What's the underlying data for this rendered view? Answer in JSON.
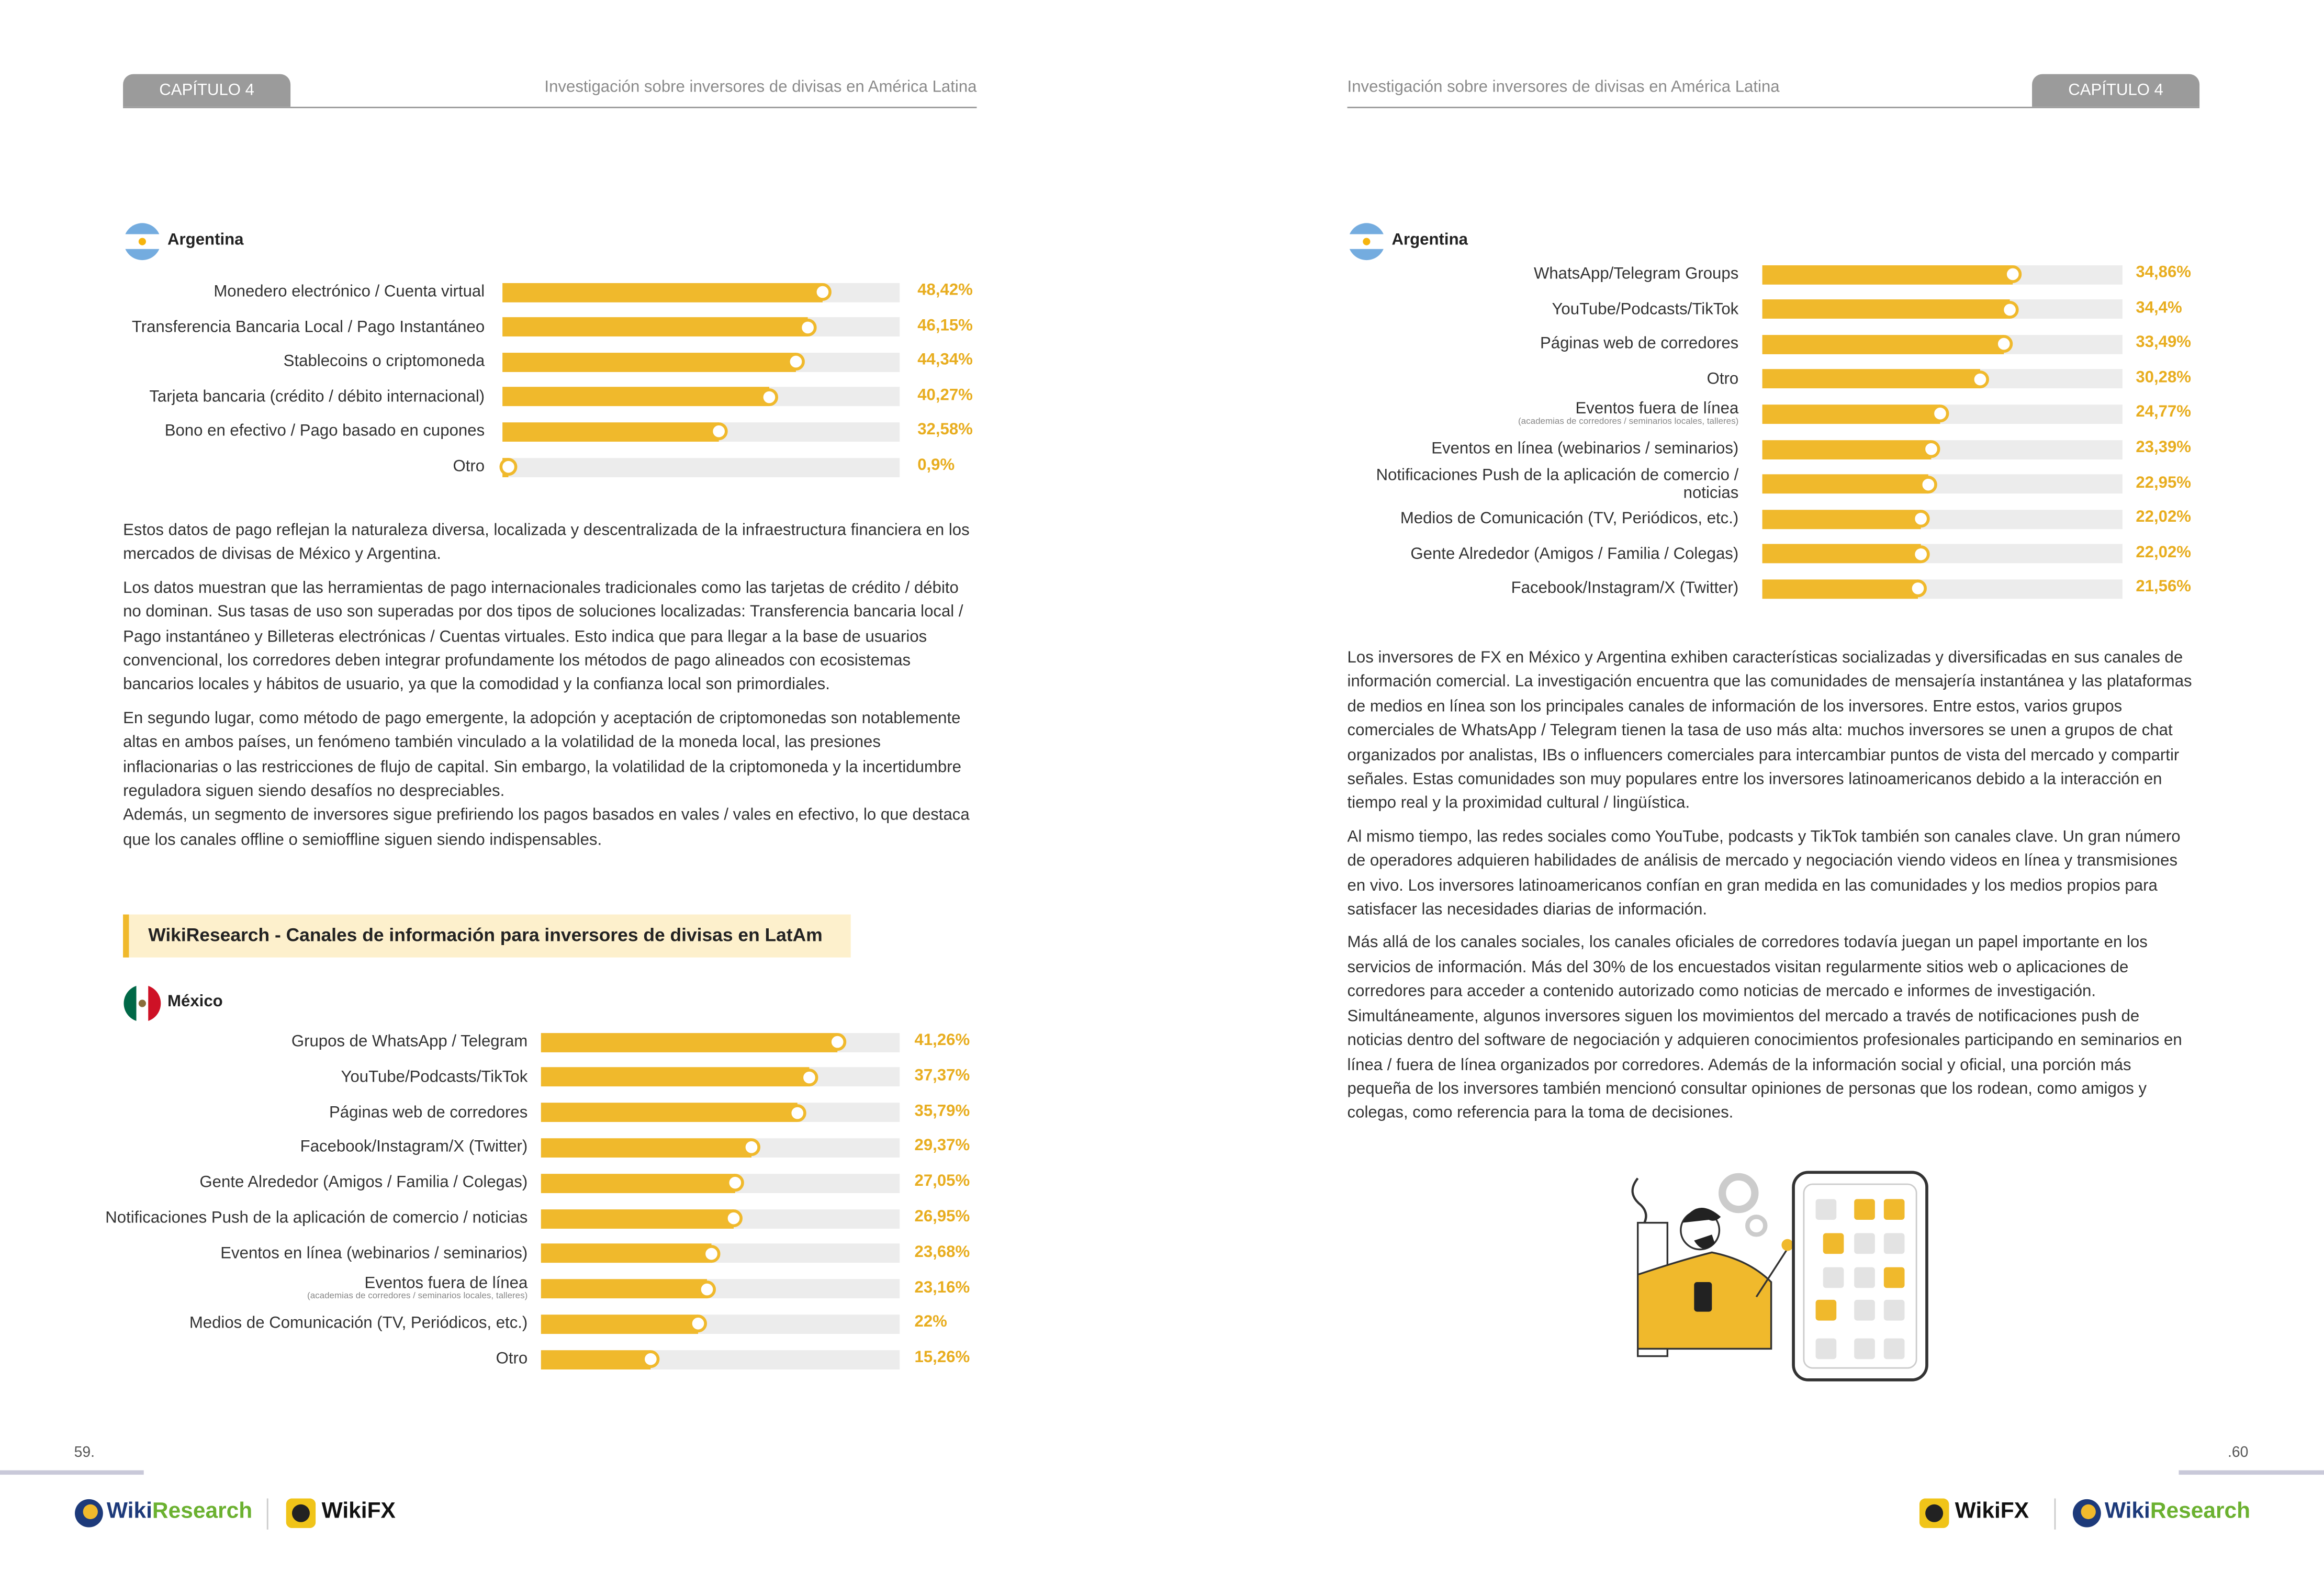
{
  "left_page": {
    "chapter": "CAPÍTULO 4",
    "header_title": "Investigación sobre inversores de divisas en América Latina",
    "payment_chart": {
      "type": "bar",
      "title": "Argentina",
      "categories": [
        "Monedero electrónico / Cuenta virtual",
        "Transferencia Bancaria Local / Pago Instantáneo",
        "Stablecoins o criptomoneda",
        "Tarjeta bancaria (crédito / débito internacional)",
        "Bono en efectivo / Pago basado en cupones",
        "Otro"
      ],
      "values": [
        48.42,
        46.15,
        44.34,
        40.27,
        32.58,
        0.9
      ],
      "value_labels": [
        "48,42%",
        "46,15%",
        "44,34%",
        "40,27%",
        "32,58%",
        "0,9%"
      ],
      "color": "#f0b92c",
      "xlim": [
        0,
        60
      ]
    },
    "paragraphs": [
      "Estos datos de pago reflejan la naturaleza diversa, localizada y descentralizada de la infraestructura financiera en los mercados de divisas de México y Argentina.",
      "Los datos muestran que las herramientas de pago internacionales tradicionales como las tarjetas de crédito / débito no dominan. Sus tasas de uso son superadas por dos tipos de soluciones localizadas: Transferencia bancaria local / Pago instantáneo y Billeteras electrónicas / Cuentas virtuales. Esto indica que para llegar a la base de usuarios convencional, los corredores deben integrar profundamente los métodos de pago alineados con ecosistemas bancarios locales y hábitos de usuario, ya que la comodidad y la confianza local son primordiales.",
      "En segundo lugar, como método de pago emergente, la adopción y aceptación de criptomonedas son notablemente altas en ambos países, un fenómeno también vinculado a la volatilidad de la moneda local, las presiones inflacionarias o las restricciones de flujo de capital. Sin embargo, la volatilidad de la criptomoneda y la incertidumbre reguladora siguen siendo desafíos no despreciables.",
      "Además, un segmento de inversores sigue prefiriendo los pagos basados en vales / vales en efectivo, lo que destaca que los canales offline o semioffline siguen siendo indispensables."
    ],
    "section_title": "WikiResearch - Canales de información para inversores de divisas en LatAm",
    "mexico_chart": {
      "type": "bar",
      "title": "México",
      "categories": [
        "Grupos de WhatsApp / Telegram",
        "YouTube/Podcasts/TikTok",
        "Páginas web de corredores",
        "Facebook/Instagram/X (Twitter)",
        "Gente Alrededor (Amigos / Familia / Colegas)",
        "Notificaciones Push de la aplicación de comercio / noticias",
        "Eventos en línea (webinarios / seminarios)",
        "Eventos fuera de línea",
        "Medios de Comunicación (TV, Periódicos, etc.)",
        "Otro"
      ],
      "category_notes": [
        null,
        null,
        null,
        null,
        null,
        null,
        null,
        "(academias de corredores / seminarios locales, talleres)",
        null,
        null
      ],
      "values": [
        41.26,
        37.37,
        35.79,
        29.37,
        27.05,
        26.95,
        23.68,
        23.16,
        22,
        15.26
      ],
      "value_labels": [
        "41,26%",
        "37,37%",
        "35,79%",
        "29,37%",
        "27,05%",
        "26,95%",
        "23,68%",
        "23,16%",
        "22%",
        "15,26%"
      ],
      "color": "#f0b92c",
      "xlim": [
        0,
        50
      ]
    },
    "page_number": "59."
  },
  "right_page": {
    "chapter": "CAPÍTULO 4",
    "header_title": "Investigación sobre inversores de divisas en América Latina",
    "channels_chart": {
      "type": "bar",
      "title": "Argentina",
      "categories": [
        "WhatsApp/Telegram Groups",
        "YouTube/Podcasts/TikTok",
        "Páginas web de corredores",
        "Otro",
        "Eventos fuera de línea",
        "Eventos en línea (webinarios / seminarios)",
        "Notificaciones Push de la aplicación de comercio / noticias",
        "Medios de Comunicación (TV, Periódicos, etc.)",
        "Gente Alrededor (Amigos / Familia / Colegas)",
        "Facebook/Instagram/X (Twitter)"
      ],
      "category_notes": [
        null,
        null,
        null,
        null,
        "(academias de corredores / seminarios locales, talleres)",
        null,
        null,
        null,
        null,
        null
      ],
      "values": [
        34.86,
        34.4,
        33.49,
        30.28,
        24.77,
        23.39,
        22.95,
        22.02,
        22.02,
        21.56
      ],
      "value_labels": [
        "34,86%",
        "34,4%",
        "33,49%",
        "30,28%",
        "24,77%",
        "23,39%",
        "22,95%",
        "22,02%",
        "22,02%",
        "21,56%"
      ],
      "color": "#f0b92c",
      "xlim": [
        0,
        50
      ]
    },
    "paragraphs": [
      "Los inversores de FX en México y Argentina exhiben características socializadas y diversificadas en sus canales de información comercial. La investigación encuentra que las comunidades de mensajería instantánea y las plataformas de medios en línea son los principales canales de información de los inversores. Entre estos, varios grupos comerciales de WhatsApp / Telegram tienen la tasa de uso más alta: muchos inversores se unen a grupos de chat organizados por analistas, IBs o influencers comerciales para intercambiar puntos de vista del mercado y compartir señales. Estas comunidades son muy populares entre los inversores latinoamericanos debido a la interacción en tiempo real y la proximidad cultural / lingüística.",
      "Al mismo tiempo, las redes sociales como YouTube, podcasts y TikTok también son canales clave. Un gran número de operadores adquieren habilidades de análisis de mercado y negociación viendo videos en línea y transmisiones en vivo. Los inversores latinoamericanos confían en gran medida en las comunidades y los medios propios para satisfacer las necesidades diarias de información.",
      "Más allá de los canales sociales, los canales oficiales de corredores todavía juegan un papel importante en los servicios de información. Más del 30% de los encuestados visitan regularmente sitios web o aplicaciones de corredores para acceder a contenido autorizado como noticias de mercado e informes de investigación. Simultáneamente, algunos inversores siguen los movimientos del mercado a través de notificaciones push de noticias dentro del software de negociación y adquieren conocimientos profesionales participando en seminarios en línea / fuera de línea organizados por corredores. Además de la información social y oficial, una porción más pequeña de los inversores también mencionó consultar opiniones de personas que los rodean, como amigos y colegas, como referencia para la toma de decisiones."
    ],
    "page_number": ".60"
  },
  "footer": {
    "research_logo": [
      "Wiki",
      "Research"
    ],
    "fx_logo": "WikiFX"
  }
}
